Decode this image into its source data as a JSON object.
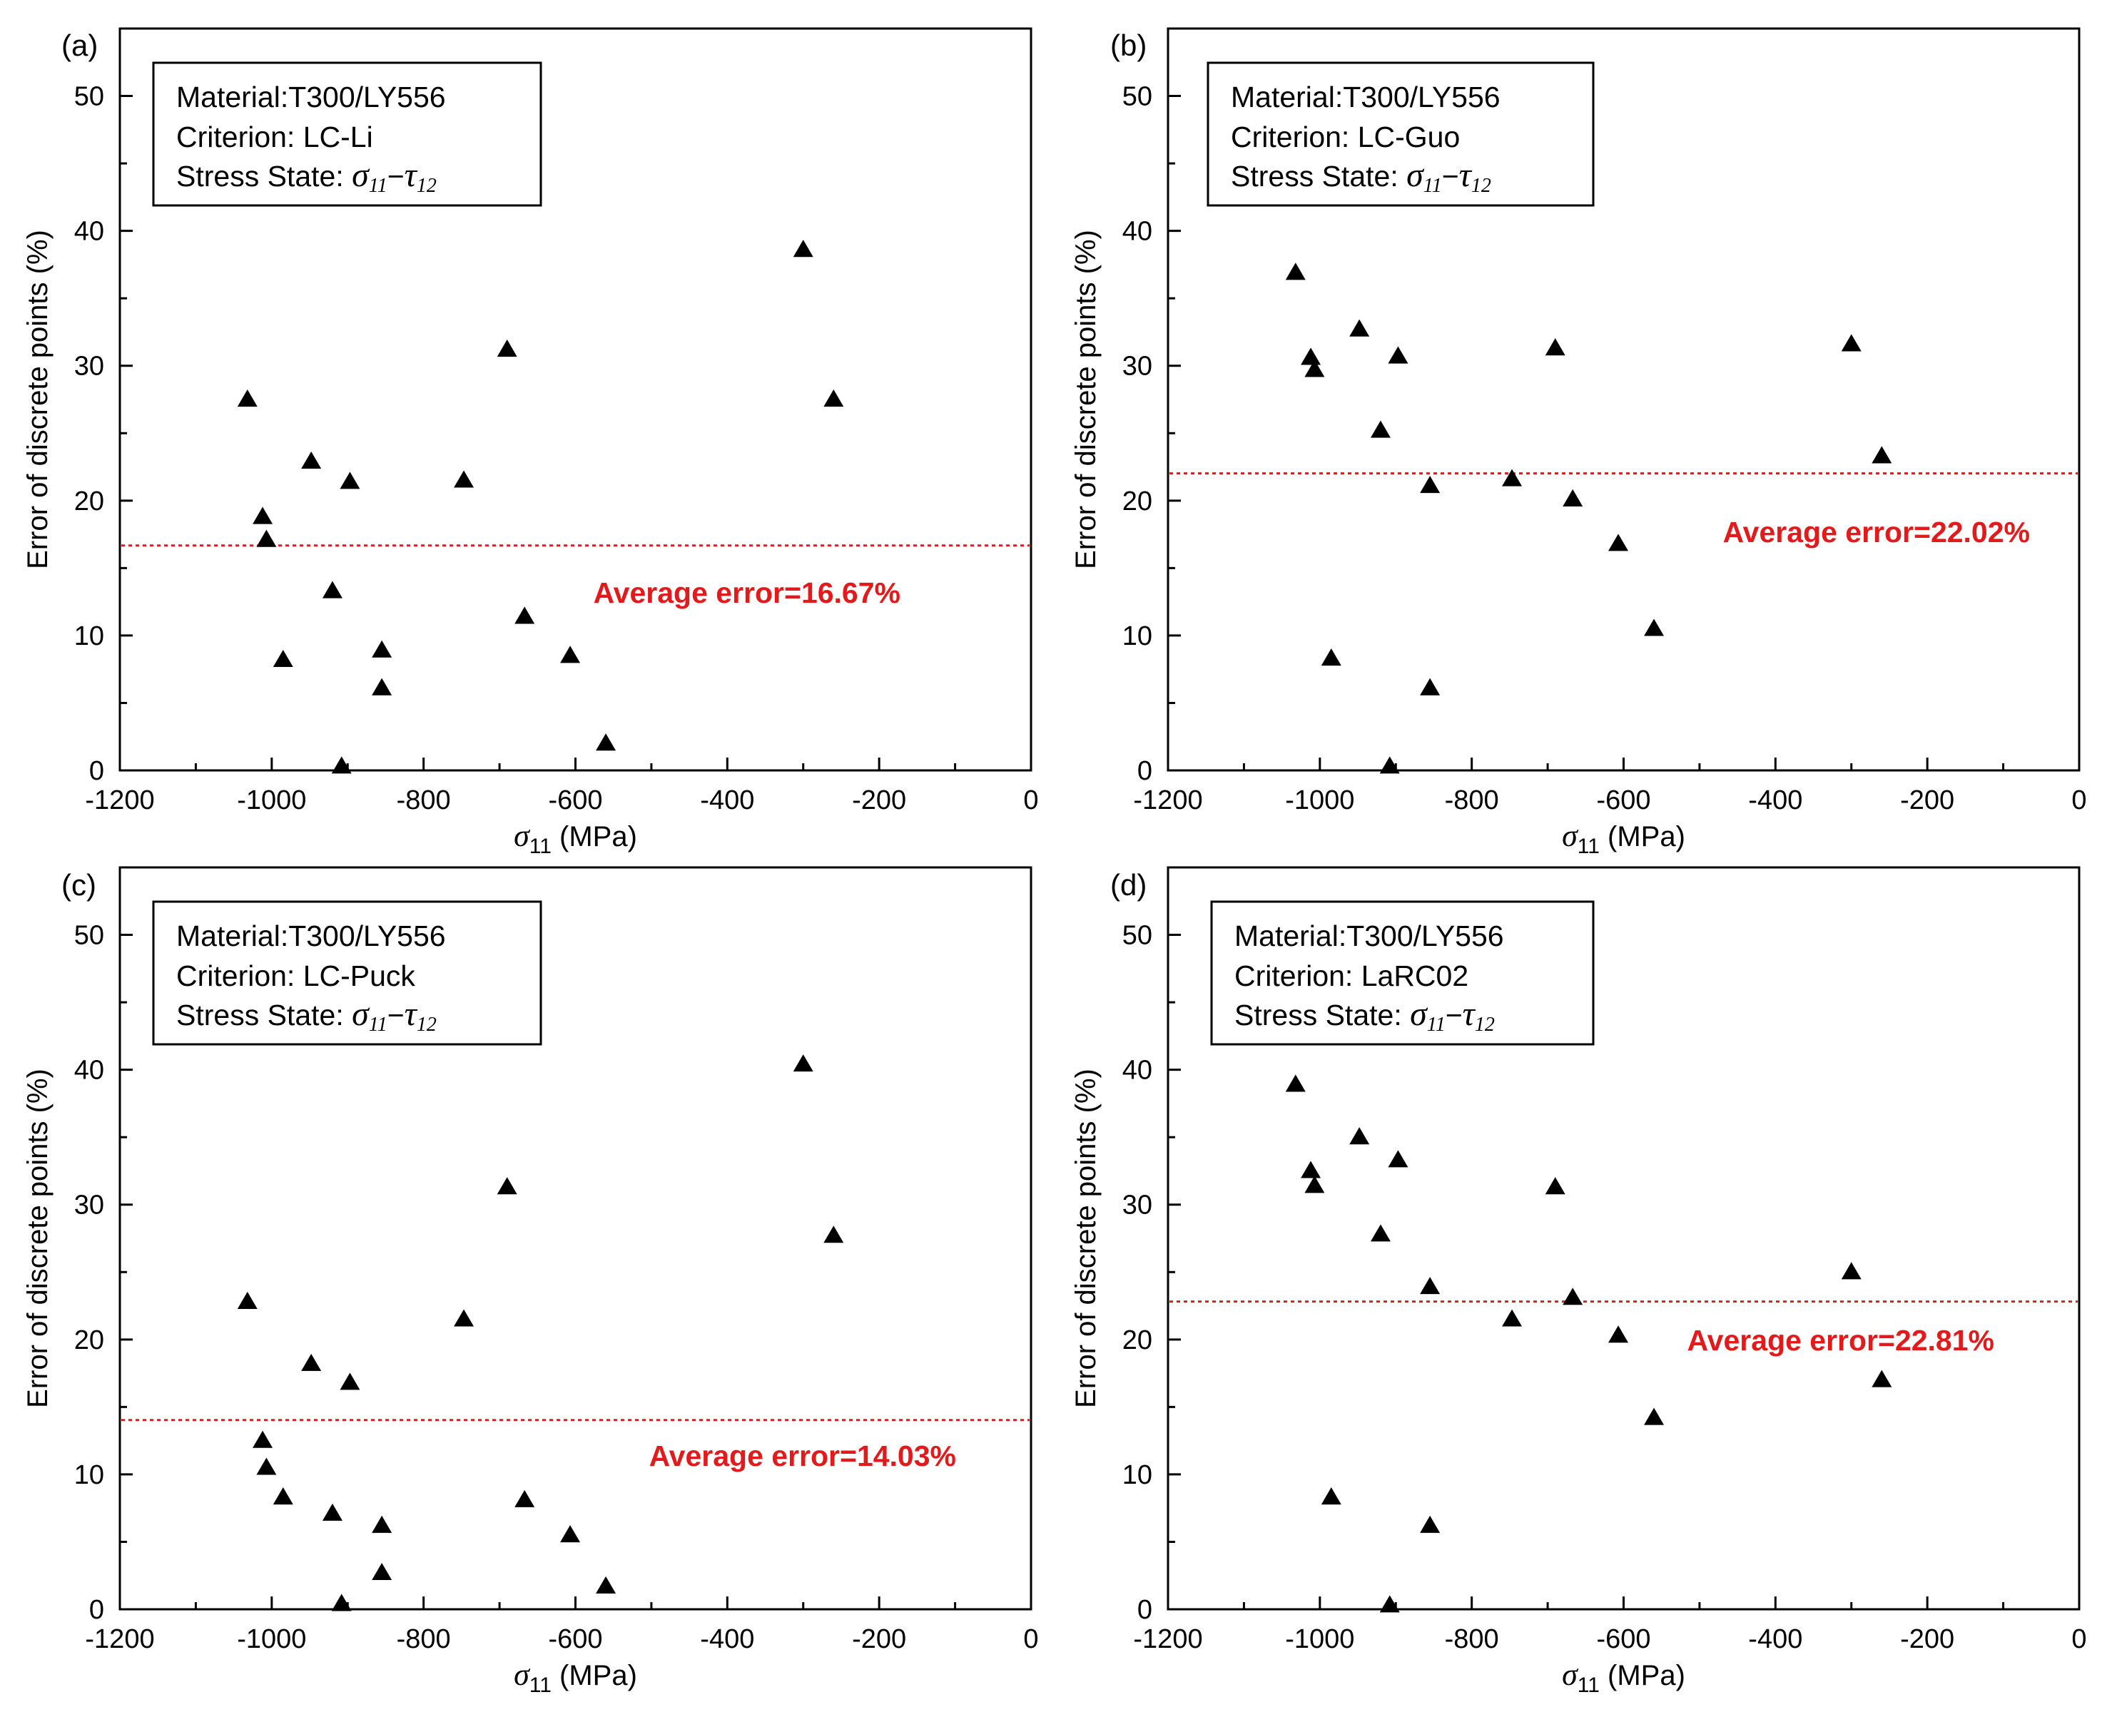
{
  "chart_data": [
    {
      "type": "scatter",
      "panel_label": "(a)",
      "legend": {
        "material": "Material:T300/LY556",
        "criterion": "Criterion: LC-Li",
        "stress_state_prefix": "Stress State: ",
        "stress_state_sigma": "σ",
        "stress_state_sigma_sub": "11",
        "stress_state_dash": "−",
        "stress_state_tau": "τ",
        "stress_state_tau_sub": "12"
      },
      "xlabel": "σ11 (MPa)",
      "xlabel_symbol": "σ",
      "xlabel_sub": "11",
      "xlabel_unit": " (MPa)",
      "ylabel": "Error of discrete points (%)",
      "xlim": [
        -1200,
        0
      ],
      "ylim": [
        0,
        55
      ],
      "xticks": [
        -1200,
        -1000,
        -800,
        -600,
        -400,
        -200,
        0
      ],
      "yticks": [
        0,
        10,
        20,
        30,
        40,
        50
      ],
      "average_error": 16.67,
      "average_label": "Average error=16.67%",
      "points": [
        [
          -1032,
          27.5
        ],
        [
          -1012,
          18.8
        ],
        [
          -1007,
          17.1
        ],
        [
          -985,
          8.2
        ],
        [
          -948,
          22.9
        ],
        [
          -920,
          13.3
        ],
        [
          -908,
          0.3
        ],
        [
          -897,
          21.4
        ],
        [
          -855,
          8.9
        ],
        [
          -855,
          6.1
        ],
        [
          -747,
          21.5
        ],
        [
          -690,
          31.2
        ],
        [
          -667,
          11.4
        ],
        [
          -607,
          8.5
        ],
        [
          -560,
          2.0
        ],
        [
          -300,
          38.6
        ],
        [
          -260,
          27.5
        ]
      ]
    },
    {
      "type": "scatter",
      "panel_label": "(b)",
      "legend": {
        "material": "Material:T300/LY556",
        "criterion": "Criterion: LC-Guo",
        "stress_state_prefix": "Stress State: ",
        "stress_state_sigma": "σ",
        "stress_state_sigma_sub": "11",
        "stress_state_dash": "−",
        "stress_state_tau": "τ",
        "stress_state_tau_sub": "12"
      },
      "xlabel": "σ11 (MPa)",
      "xlabel_symbol": "σ",
      "xlabel_sub": "11",
      "xlabel_unit": " (MPa)",
      "ylabel": "Error of discrete points (%)",
      "xlim": [
        -1200,
        0
      ],
      "ylim": [
        0,
        55
      ],
      "xticks": [
        -1200,
        -1000,
        -800,
        -600,
        -400,
        -200,
        0
      ],
      "yticks": [
        0,
        10,
        20,
        30,
        40,
        50
      ],
      "average_error": 22.02,
      "average_label": "Average error=22.02%",
      "points": [
        [
          -1032,
          36.9
        ],
        [
          -1012,
          30.6
        ],
        [
          -1007,
          29.7
        ],
        [
          -985,
          8.3
        ],
        [
          -948,
          32.7
        ],
        [
          -920,
          25.2
        ],
        [
          -908,
          0.3
        ],
        [
          -897,
          30.7
        ],
        [
          -855,
          21.1
        ],
        [
          -855,
          6.1
        ],
        [
          -747,
          21.6
        ],
        [
          -690,
          31.3
        ],
        [
          -667,
          20.1
        ],
        [
          -607,
          16.8
        ],
        [
          -560,
          10.5
        ],
        [
          -300,
          31.6
        ],
        [
          -260,
          23.3
        ]
      ]
    },
    {
      "type": "scatter",
      "panel_label": "(c)",
      "legend": {
        "material": "Material:T300/LY556",
        "criterion": "Criterion: LC-Puck",
        "stress_state_prefix": "Stress State: ",
        "stress_state_sigma": "σ",
        "stress_state_sigma_sub": "11",
        "stress_state_dash": "−",
        "stress_state_tau": "τ",
        "stress_state_tau_sub": "12"
      },
      "xlabel": "σ11 (MPa)",
      "xlabel_symbol": "σ",
      "xlabel_sub": "11",
      "xlabel_unit": " (MPa)",
      "ylabel": "Error of discrete points (%)",
      "xlim": [
        -1200,
        0
      ],
      "ylim": [
        0,
        55
      ],
      "xticks": [
        -1200,
        -1000,
        -800,
        -600,
        -400,
        -200,
        0
      ],
      "yticks": [
        0,
        10,
        20,
        30,
        40,
        50
      ],
      "average_error": 14.03,
      "average_label": "Average error=14.03%",
      "points": [
        [
          -1032,
          22.8
        ],
        [
          -1012,
          12.5
        ],
        [
          -1007,
          10.5
        ],
        [
          -985,
          8.3
        ],
        [
          -948,
          18.2
        ],
        [
          -920,
          7.1
        ],
        [
          -908,
          0.4
        ],
        [
          -897,
          16.8
        ],
        [
          -855,
          6.2
        ],
        [
          -855,
          2.7
        ],
        [
          -747,
          21.5
        ],
        [
          -690,
          31.3
        ],
        [
          -667,
          8.1
        ],
        [
          -607,
          5.5
        ],
        [
          -560,
          1.7
        ],
        [
          -300,
          40.4
        ],
        [
          -260,
          27.7
        ]
      ]
    },
    {
      "type": "scatter",
      "panel_label": "(d)",
      "legend": {
        "material": "Material:T300/LY556",
        "criterion": "Criterion: LaRC02",
        "stress_state_prefix": "Stress State: ",
        "stress_state_sigma": "σ",
        "stress_state_sigma_sub": "11",
        "stress_state_dash": "−",
        "stress_state_tau": "τ",
        "stress_state_tau_sub": "12"
      },
      "xlabel": "σ11 (MPa)",
      "xlabel_symbol": "σ",
      "xlabel_sub": "11",
      "xlabel_unit": " (MPa)",
      "ylabel": "Error of discrete points (%)",
      "xlim": [
        -1200,
        0
      ],
      "ylim": [
        0,
        55
      ],
      "xticks": [
        -1200,
        -1000,
        -800,
        -600,
        -400,
        -200,
        0
      ],
      "yticks": [
        0,
        10,
        20,
        30,
        40,
        50
      ],
      "average_error": 22.81,
      "average_label": "Average error=22.81%",
      "points": [
        [
          -1032,
          38.9
        ],
        [
          -1012,
          32.5
        ],
        [
          -1007,
          31.4
        ],
        [
          -985,
          8.3
        ],
        [
          -948,
          35.0
        ],
        [
          -920,
          27.8
        ],
        [
          -908,
          0.3
        ],
        [
          -897,
          33.3
        ],
        [
          -855,
          23.9
        ],
        [
          -855,
          6.2
        ],
        [
          -747,
          21.5
        ],
        [
          -690,
          31.3
        ],
        [
          -667,
          23.1
        ],
        [
          -607,
          20.3
        ],
        [
          -560,
          14.2
        ],
        [
          -300,
          25.0
        ],
        [
          -260,
          17.0
        ]
      ]
    }
  ]
}
